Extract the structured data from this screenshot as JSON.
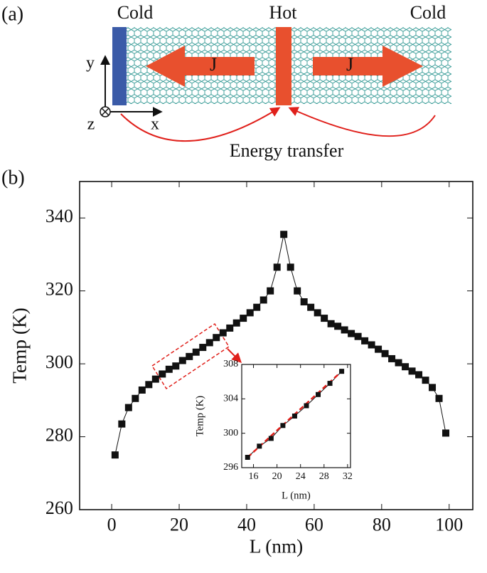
{
  "diagram": {
    "label": "(a)",
    "cold_left": "Cold",
    "hot": "Hot",
    "cold_right": "Cold",
    "flux_left": "J",
    "flux_right": "J",
    "axis_x": "x",
    "axis_y": "y",
    "axis_z": "z",
    "transfer": "Energy transfer"
  },
  "chart_data": [
    {
      "type": "line",
      "panel_label": "(b)",
      "xlabel": "L (nm)",
      "ylabel": "Temp (K)",
      "color": "#111111",
      "marker": "square",
      "x": [
        1,
        3,
        5,
        7,
        9,
        11,
        13,
        15,
        17,
        19,
        21,
        23,
        25,
        27,
        29,
        31,
        33,
        35,
        37,
        39,
        41,
        43,
        45,
        47,
        49,
        51,
        53,
        55,
        57,
        59,
        61,
        63,
        65,
        67,
        69,
        71,
        73,
        75,
        77,
        79,
        81,
        83,
        85,
        87,
        89,
        91,
        93,
        95,
        97,
        99
      ],
      "values": [
        275,
        283.5,
        288,
        290.5,
        292.8,
        294.3,
        295.8,
        297.2,
        298.5,
        299.4,
        300.9,
        302,
        303.2,
        304.5,
        305.8,
        307.2,
        308.5,
        309.8,
        311.2,
        312.5,
        314,
        315.5,
        317.5,
        320,
        326.5,
        335.5,
        326.5,
        320,
        317,
        315.5,
        314,
        312.5,
        311,
        310.3,
        309.3,
        308.3,
        307.5,
        306.3,
        305.2,
        304,
        302.8,
        301.4,
        300.3,
        299.2,
        298,
        297,
        295.5,
        293.5,
        290.5,
        281
      ],
      "xlim": [
        -9.5,
        107
      ],
      "ylim": [
        260,
        350
      ],
      "xticks": [
        0,
        20,
        40,
        60,
        80,
        100
      ],
      "yticks": [
        260,
        280,
        300,
        320,
        340
      ]
    },
    {
      "type": "line",
      "xlabel": "L (nm)",
      "ylabel": "Temp (K)",
      "color": "#111111",
      "marker": "square",
      "fit_color": "#e0201b",
      "x": [
        15,
        17,
        19,
        21,
        23,
        25,
        27,
        29,
        31
      ],
      "values": [
        297.2,
        298.5,
        299.4,
        300.9,
        302,
        303.2,
        304.5,
        305.8,
        307.2
      ],
      "xlim": [
        14,
        32.5
      ],
      "ylim": [
        296,
        308
      ],
      "xticks": [
        16,
        20,
        24,
        28,
        32
      ],
      "yticks": [
        296,
        300,
        304,
        308
      ]
    }
  ]
}
